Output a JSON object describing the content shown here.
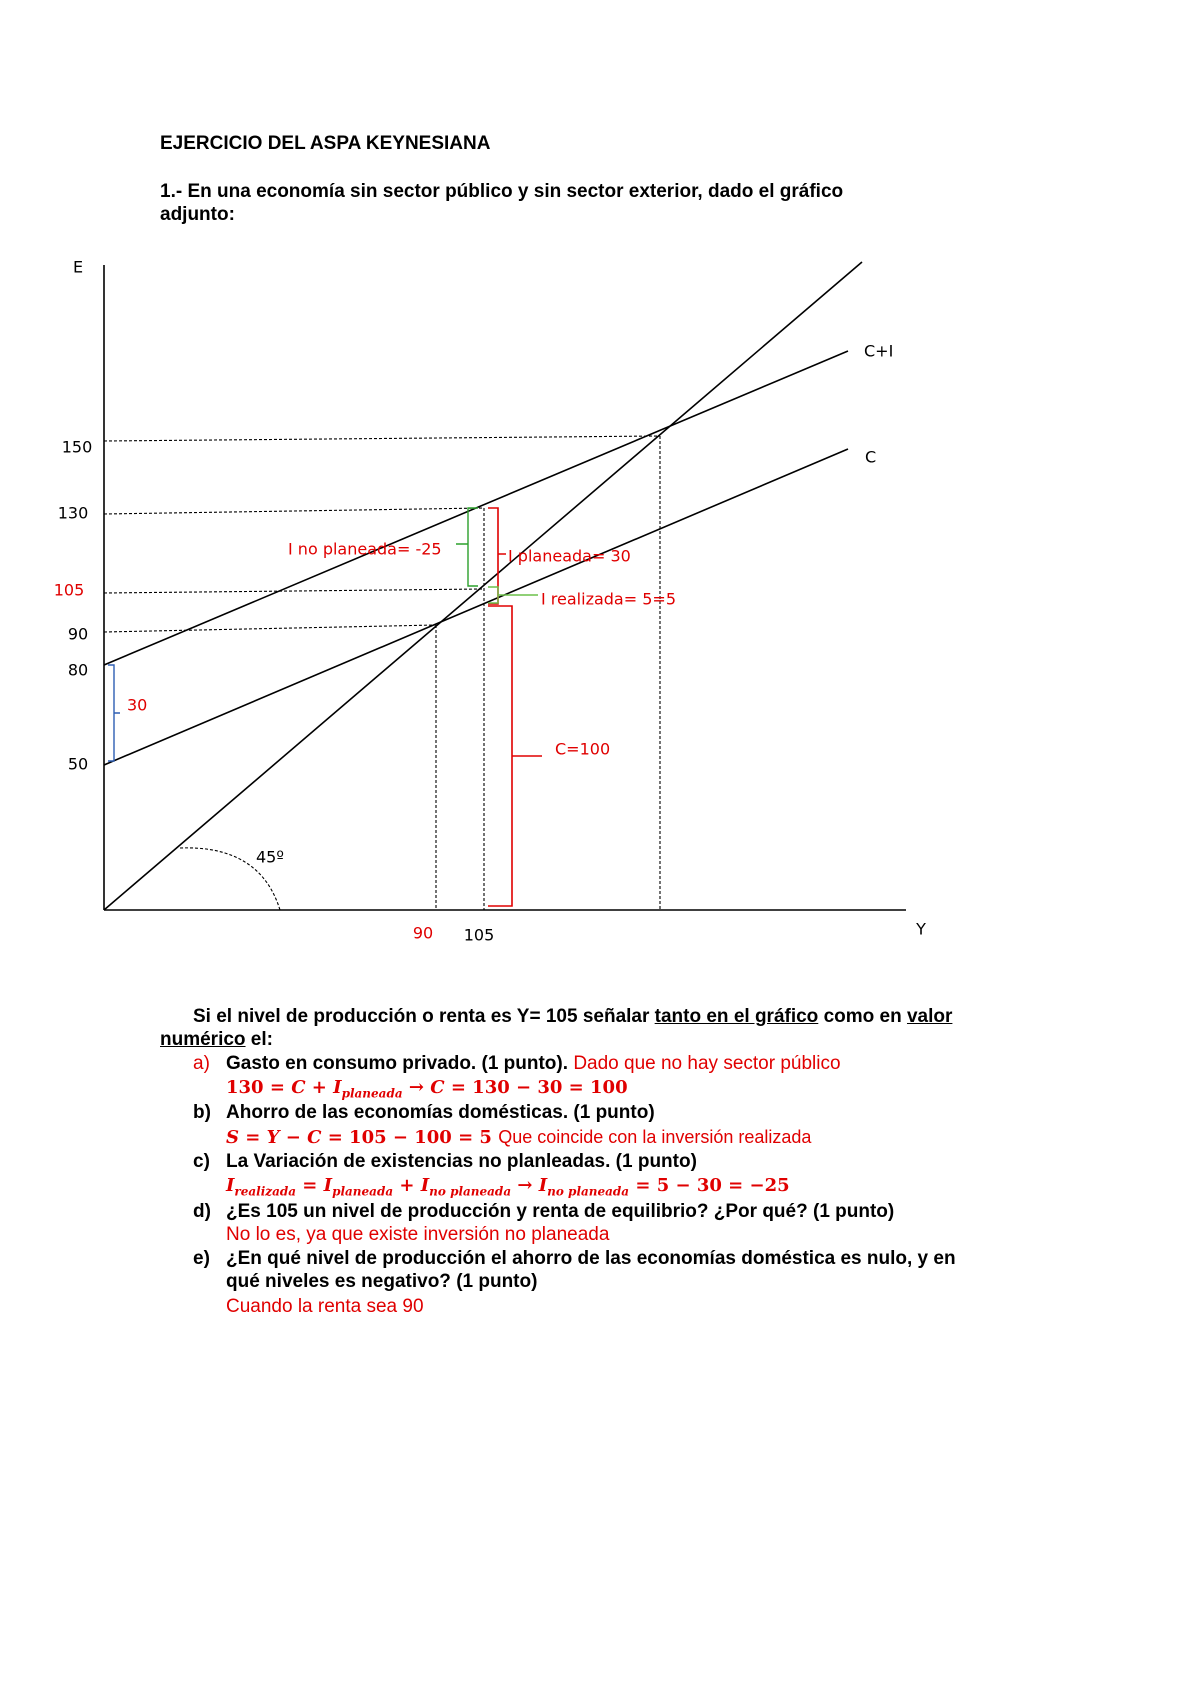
{
  "header": {
    "title": "EJERCICIO DEL ASPA KEYNESIANA",
    "question": "1.- En una economía sin sector público y sin sector exterior, dado el gráfico adjunto:"
  },
  "diagram": {
    "y_axis_label": "E",
    "x_axis_label": "Y",
    "y_ticks": [
      150,
      130,
      105,
      90,
      80,
      50
    ],
    "x_ticks": [
      90,
      105
    ],
    "line_labels": [
      "C+I",
      "C"
    ],
    "angle_label": "45º",
    "annotations": [
      "I no planeada= -25",
      "I planeada= 30",
      "I realizada= 5=5",
      "C=100",
      "30"
    ]
  },
  "intro": [
    "Si el nivel de producción o renta es Y= 105 señalar ",
    "tanto en el gráfico",
    " como en ",
    "valor numérico",
    " el:"
  ],
  "items": [
    {
      "label": "a)",
      "question": "Gasto en consumo privado. (1 punto).",
      "answer": "Dado que no hay sector público",
      "formula": [
        "130 = ",
        "C",
        " + ",
        "I",
        "planeada",
        " → ",
        "C",
        " = 130 − 30 = 100"
      ]
    },
    {
      "label": "b)",
      "question": "Ahorro de las economías domésticas. (1 punto)",
      "formula": [
        "S",
        " = ",
        "Y",
        " − ",
        "C",
        " = 105 − 100 = 5 ",
        "Que coincide con la inversión realizada"
      ]
    },
    {
      "label": "c)",
      "question": "La Variación de existencias no planleadas. (1 punto)",
      "formula": [
        "I",
        "realizada",
        " = ",
        "I",
        "planeada",
        " + ",
        "I",
        "no planeada",
        " → ",
        "I",
        "no planeada",
        " = 5 − 30 = −25"
      ]
    },
    {
      "label": "d)",
      "question": "¿Es 105 un nivel de producción y renta de equilibrio? ¿Por qué? (1 punto)",
      "answer": "No lo es, ya que existe inversión no planeada"
    },
    {
      "label": "e)",
      "question": "¿En qué nivel de producción el ahorro de las economías doméstica es nulo, y en qué niveles es negativo? (1 punto)",
      "answer": "Cuando la renta sea 90"
    }
  ]
}
